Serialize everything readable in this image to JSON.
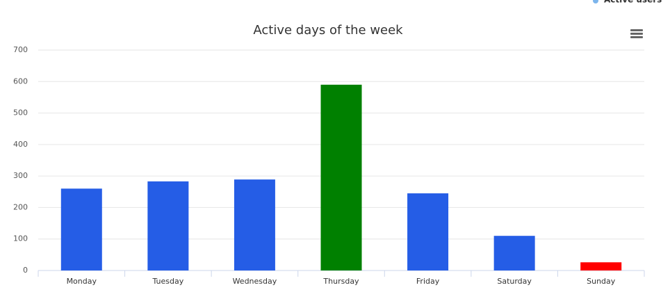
{
  "chart_data": {
    "type": "bar",
    "title": "Active days of the week",
    "categories": [
      "Monday",
      "Tuesday",
      "Wednesday",
      "Thursday",
      "Friday",
      "Saturday",
      "Sunday"
    ],
    "series": [
      {
        "name": "Active users",
        "color": "#7cb5ec",
        "values": [
          260,
          283,
          289,
          590,
          245,
          110,
          26
        ],
        "colors": [
          "#255de6",
          "#255de6",
          "#255de6",
          "#008000",
          "#255de6",
          "#255de6",
          "#ff0000"
        ]
      }
    ],
    "ylim": [
      0,
      700
    ],
    "yticks": [
      0,
      100,
      200,
      300,
      400,
      500,
      600,
      700
    ],
    "grid": true,
    "legend": "top-right"
  }
}
